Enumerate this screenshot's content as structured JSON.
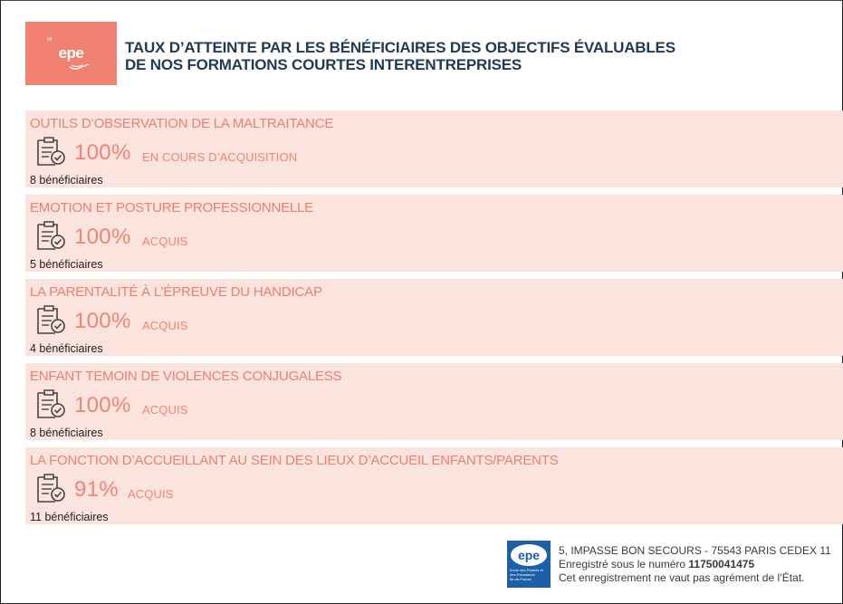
{
  "header": {
    "logo_text": "epe",
    "logo_sub": "formation",
    "logo_region": "idf",
    "title_line1": "TAUX D’ATTEINTE PAR LES BÉNÉFICIAIRES DES OBJECTIFS ÉVALUABLES",
    "title_line2": "DE NOS FORMATIONS COURTES INTERENTREPRISES"
  },
  "rows": [
    {
      "title": "OUTILS D’OBSERVATION DE LA MALTRAITANCE",
      "percent": "100%",
      "status": "EN COURS D’ACQUISITION",
      "beneficiaires": "8 bénéficiaires"
    },
    {
      "title": "EMOTION ET POSTURE PROFESSIONNELLE",
      "percent": "100%",
      "status": "ACQUIS",
      "beneficiaires": "5 bénéficiaires"
    },
    {
      "title": "LA PARENTALITÉ À L’ÉPREUVE DU HANDICAP",
      "percent": "100%",
      "status": "ACQUIS",
      "beneficiaires": "4 bénéficiaires"
    },
    {
      "title": "ENFANT TEMOIN DE VIOLENCES CONJUGALESS",
      "percent": "100%",
      "status": "ACQUIS",
      "beneficiaires": "8 bénéficiaires"
    },
    {
      "title": "LA FONCTION D’ACCUEILLANT AU SEIN DES LIEUX D’ACCUEIL ENFANTS/PARENTS",
      "percent": "91%",
      "status": "ACQUIS",
      "beneficiaires": "11 bénéficiaires"
    }
  ],
  "footer": {
    "logo_text": "epe",
    "logo_sub": "Ecole des Parents et des Educateurs",
    "logo_region": "Île-de-France",
    "address": "5, IMPASSE BON SECOURS - 75543 PARIS CEDEX 11",
    "registered_prefix": "Enregistré sous le numéro ",
    "registered_number": "11750041475",
    "disclaimer": "Cet enregistrement ne vaut pas agrément de l’État."
  },
  "colors": {
    "accent": "#ef8574",
    "row_bg": "#fbe3de",
    "title": "#1f3a52",
    "footer_logo": "#1d5fa8"
  },
  "icons": [
    "checklist-document-icon"
  ]
}
